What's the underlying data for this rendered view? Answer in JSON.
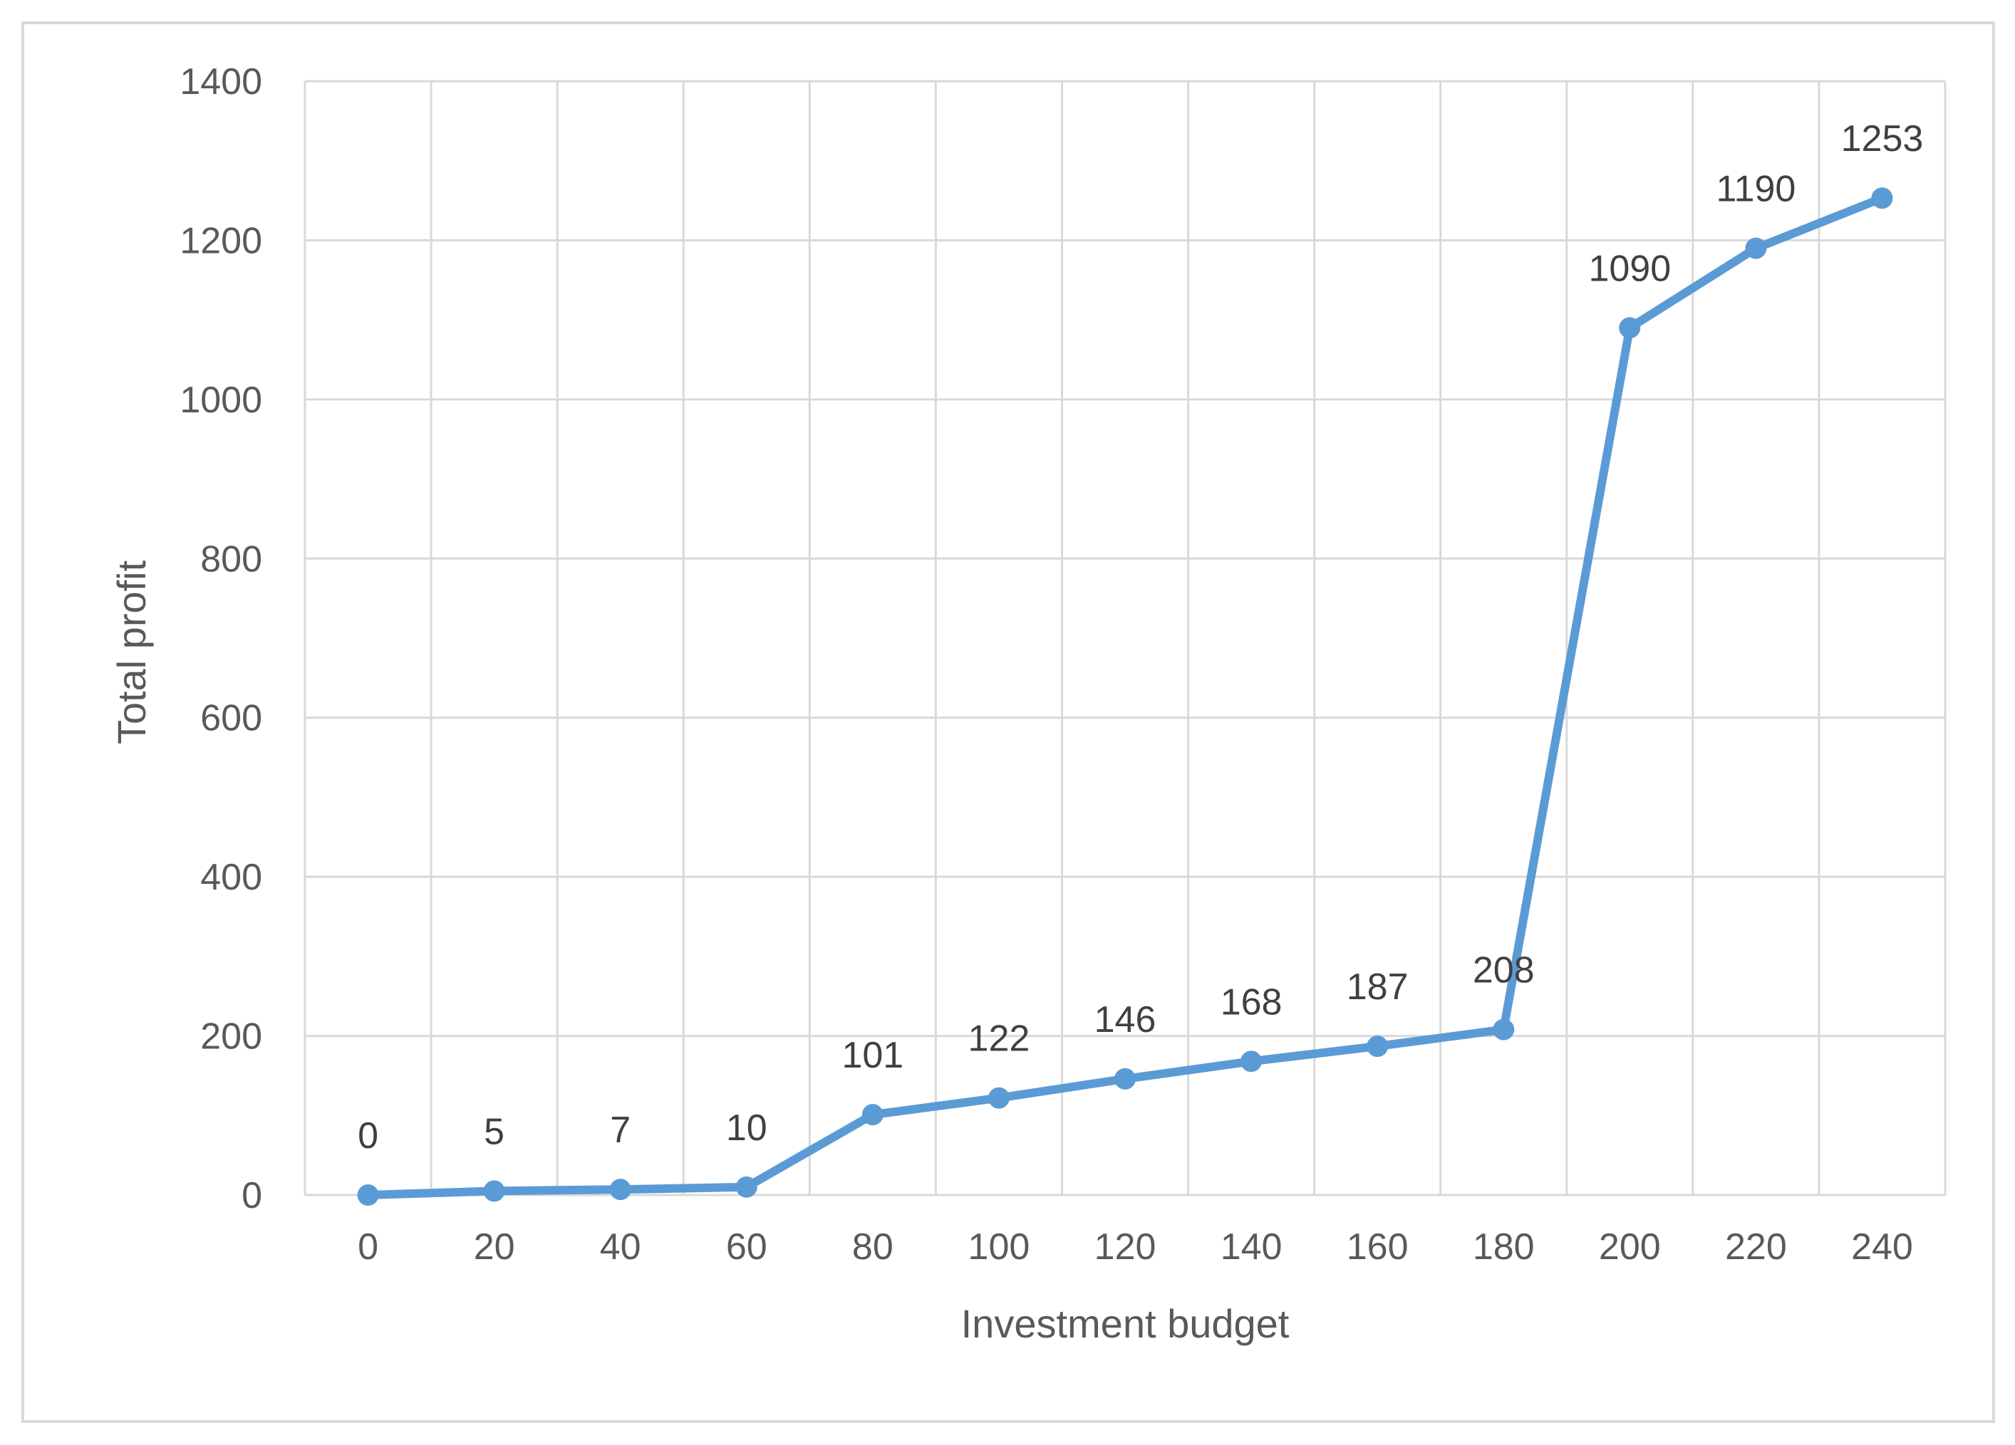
{
  "chart_data": {
    "type": "line",
    "title": "",
    "xlabel": "Investment budget",
    "ylabel": "Total profit",
    "x": [
      0,
      20,
      40,
      60,
      80,
      100,
      120,
      140,
      160,
      180,
      200,
      220,
      240
    ],
    "x_tick_labels": [
      "0",
      "20",
      "40",
      "60",
      "80",
      "100",
      "120",
      "140",
      "160",
      "180",
      "200",
      "220",
      "240"
    ],
    "ylim": [
      0,
      1400
    ],
    "y_ticks": [
      0,
      200,
      400,
      600,
      800,
      1000,
      1200,
      1400
    ],
    "y_tick_labels": [
      "0",
      "200",
      "400",
      "600",
      "800",
      "1000",
      "1200",
      "1400"
    ],
    "grid": true,
    "legend": "none",
    "series": [
      {
        "values": [
          0,
          5,
          7,
          10,
          101,
          122,
          146,
          168,
          187,
          208,
          1090,
          1190,
          1253
        ],
        "data_labels": [
          "0",
          "5",
          "7",
          "10",
          "101",
          "122",
          "146",
          "168",
          "187",
          "208",
          "1090",
          "1190",
          "1253"
        ],
        "color": "#5b9bd5",
        "marker": "circle"
      }
    ]
  }
}
